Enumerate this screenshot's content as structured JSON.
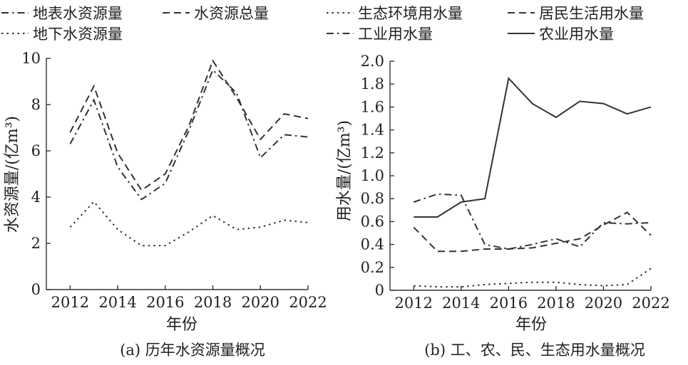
{
  "chart_data": [
    {
      "type": "line",
      "caption": "(a) 历年水资源量概况",
      "xlabel": "年份",
      "ylabel": "水资源量/(亿m³)",
      "x": [
        2012,
        2013,
        2014,
        2015,
        2016,
        2017,
        2018,
        2019,
        2020,
        2021,
        2022
      ],
      "xticks": [
        "2012",
        "2014",
        "2016",
        "2018",
        "2020",
        "2022"
      ],
      "yticks": [
        "0",
        "2",
        "4",
        "6",
        "8",
        "10"
      ],
      "xlim": [
        2011,
        2022
      ],
      "ylim": [
        0,
        10
      ],
      "series": [
        {
          "name": "地表水资源量",
          "style": "dashdot",
          "values": [
            6.3,
            8.2,
            5.3,
            3.9,
            4.6,
            6.9,
            9.5,
            8.5,
            5.7,
            6.7,
            6.6
          ]
        },
        {
          "name": "水资源总量",
          "style": "dashed",
          "values": [
            6.8,
            8.8,
            5.9,
            4.3,
            5.0,
            7.1,
            9.9,
            8.3,
            6.5,
            7.6,
            7.4
          ]
        },
        {
          "name": "地下水资源量",
          "style": "dotted",
          "values": [
            2.7,
            3.8,
            2.6,
            1.9,
            1.9,
            2.5,
            3.2,
            2.6,
            2.7,
            3.0,
            2.9
          ]
        }
      ]
    },
    {
      "type": "line",
      "caption": "(b) 工、农、民、生态用水量概况",
      "xlabel": "年份",
      "ylabel": "用水量/(亿m³)",
      "x": [
        2012,
        2013,
        2014,
        2015,
        2016,
        2017,
        2018,
        2019,
        2020,
        2021,
        2022
      ],
      "xticks": [
        "2012",
        "2014",
        "2016",
        "2018",
        "2020",
        "2022"
      ],
      "yticks": [
        "0",
        "0.2",
        "0.4",
        "0.6",
        "0.8",
        "1.0",
        "1.2",
        "1.4",
        "1.6",
        "1.8",
        "2.0"
      ],
      "xlim": [
        2011,
        2022
      ],
      "ylim": [
        0,
        2.0
      ],
      "series": [
        {
          "name": "生态环境用水量",
          "style": "dotted",
          "values": [
            0.04,
            0.03,
            0.03,
            0.05,
            0.06,
            0.07,
            0.07,
            0.05,
            0.04,
            0.05,
            0.19
          ]
        },
        {
          "name": "居民生活用水量",
          "style": "dashed",
          "values": [
            0.55,
            0.34,
            0.34,
            0.36,
            0.36,
            0.37,
            0.41,
            0.45,
            0.57,
            0.68,
            0.48
          ]
        },
        {
          "name": "工业用水量",
          "style": "dashdot",
          "values": [
            0.77,
            0.84,
            0.83,
            0.4,
            0.36,
            0.4,
            0.45,
            0.38,
            0.59,
            0.58,
            0.59
          ]
        },
        {
          "name": "农业用水量",
          "style": "solid",
          "values": [
            0.64,
            0.64,
            0.77,
            0.8,
            1.85,
            1.63,
            1.51,
            1.65,
            1.63,
            1.54,
            1.6
          ]
        }
      ]
    }
  ]
}
